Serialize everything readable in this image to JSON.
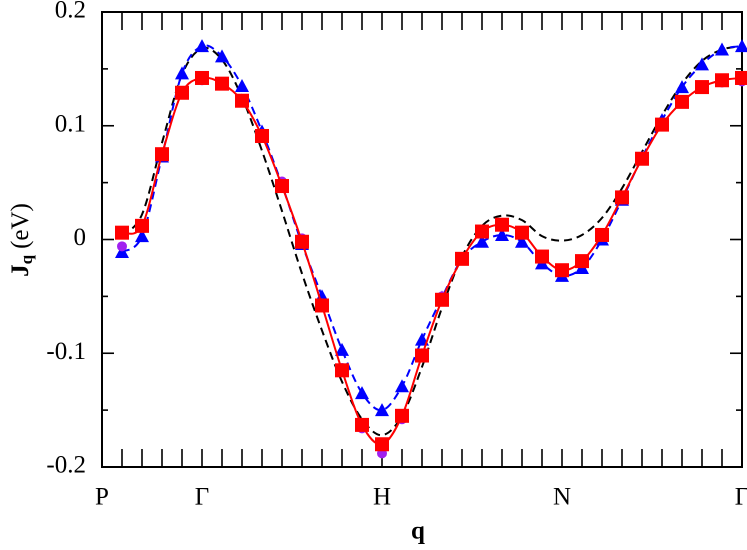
{
  "chart_data": {
    "type": "line",
    "xlabel": "q",
    "ylabel": "J",
    "ylabel_sub": "q",
    "ylabel_unit": "(eV)",
    "x": [
      1,
      2,
      3,
      4,
      5,
      6,
      7,
      8,
      9,
      10,
      11,
      12,
      13,
      14,
      15,
      16,
      17,
      18,
      19,
      20,
      21,
      22,
      23,
      24,
      25,
      26,
      27,
      28,
      29,
      30,
      31,
      32
    ],
    "xlim": [
      0,
      32
    ],
    "xticks": [
      {
        "value": 0,
        "label": "P"
      },
      {
        "value": 5,
        "label": "Γ"
      },
      {
        "value": 14,
        "label": "H"
      },
      {
        "value": 23,
        "label": "N"
      },
      {
        "value": 32,
        "label": "Γ"
      }
    ],
    "xminor": [
      1,
      2,
      3,
      4,
      6,
      7,
      8,
      9,
      10,
      11,
      12,
      13,
      15,
      16,
      17,
      18,
      19,
      20,
      21,
      22,
      24,
      25,
      26,
      27,
      28,
      29,
      30,
      31
    ],
    "ylim": [
      -0.2,
      0.2
    ],
    "yticks": [
      -0.2,
      -0.1,
      0,
      0.1,
      0.2
    ],
    "yminor": [
      -0.15,
      -0.05,
      0.05,
      0.15
    ],
    "series": [
      {
        "color": "#000000",
        "line": "dashed",
        "marker": "none",
        "values": [
          0.003,
          0.022,
          0.085,
          0.145,
          0.168,
          0.158,
          0.125,
          0.078,
          0.025,
          -0.03,
          -0.08,
          -0.125,
          -0.158,
          -0.172,
          -0.155,
          -0.112,
          -0.06,
          -0.015,
          0.012,
          0.021,
          0.017,
          0.003,
          -0.001,
          0.004,
          0.019,
          0.045,
          0.077,
          0.109,
          0.137,
          0.157,
          0.167,
          0.17
        ]
      },
      {
        "color": "#0000ff",
        "line": "dashed",
        "marker": "triangle",
        "values": [
          -0.011,
          0.003,
          0.073,
          0.146,
          0.17,
          0.161,
          0.135,
          0.095,
          0.048,
          -0.004,
          -0.05,
          -0.097,
          -0.135,
          -0.15,
          -0.129,
          -0.088,
          -0.051,
          -0.017,
          -0.002,
          0.004,
          -0.002,
          -0.021,
          -0.032,
          -0.025,
          0.0,
          0.035,
          0.072,
          0.105,
          0.134,
          0.154,
          0.167,
          0.17
        ]
      },
      {
        "color": "#a020f0",
        "line": "none",
        "marker": "circle",
        "values": [
          -0.006,
          0.01,
          0.075,
          0.13,
          0.14,
          0.137,
          0.122,
          0.093,
          0.051,
          0.001,
          -0.056,
          -0.113,
          -0.166,
          -0.188,
          -0.158,
          -0.1,
          -0.05,
          -0.016,
          0.007,
          0.013,
          0.006,
          -0.015,
          -0.028,
          -0.02,
          0.003,
          0.036,
          0.071,
          0.1,
          0.12,
          0.134,
          0.138,
          0.139
        ]
      },
      {
        "color": "#ff0000",
        "line": "solid",
        "marker": "square",
        "values": [
          0.006,
          0.012,
          0.075,
          0.129,
          0.142,
          0.137,
          0.122,
          0.091,
          0.047,
          -0.002,
          -0.058,
          -0.115,
          -0.163,
          -0.18,
          -0.155,
          -0.102,
          -0.053,
          -0.017,
          0.007,
          0.013,
          0.006,
          -0.015,
          -0.027,
          -0.019,
          0.004,
          0.037,
          0.071,
          0.101,
          0.121,
          0.134,
          0.14,
          0.142
        ]
      }
    ]
  }
}
